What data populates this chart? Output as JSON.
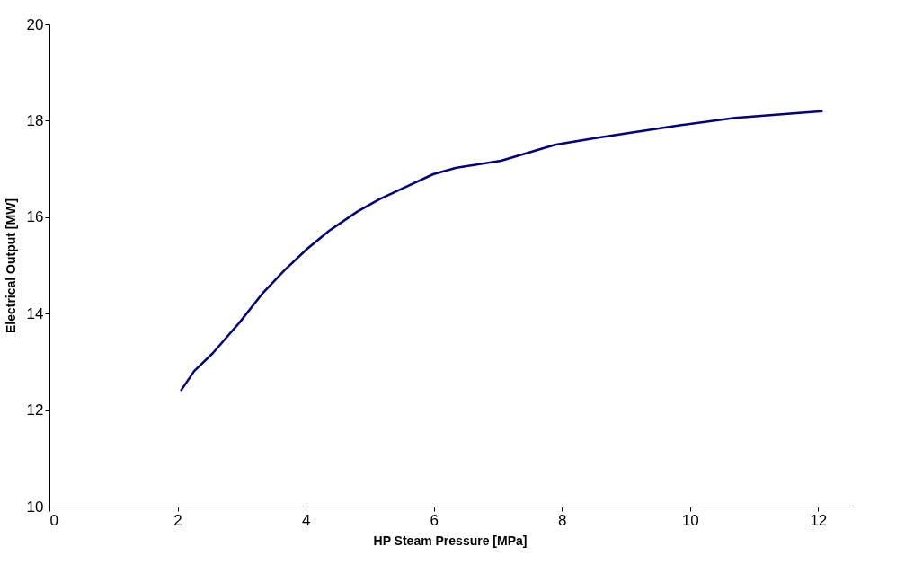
{
  "chart_data": {
    "type": "line",
    "xlabel": "HP Steam Pressure [MPa]",
    "ylabel": "Electrical Output [MW]",
    "x": [
      2.05,
      2.26,
      2.55,
      2.97,
      3.32,
      3.67,
      4.02,
      4.37,
      4.8,
      5.15,
      5.57,
      5.99,
      6.34,
      7.05,
      7.89,
      8.52,
      9.86,
      10.7,
      12.07
    ],
    "series": [
      {
        "color": "#000080",
        "values": [
          12.4,
          12.81,
          13.18,
          13.82,
          14.41,
          14.9,
          15.34,
          15.72,
          16.11,
          16.37,
          16.63,
          16.89,
          17.02,
          17.17,
          17.5,
          17.64,
          17.91,
          18.06,
          18.2
        ]
      }
    ],
    "xlim": [
      0,
      12.5
    ],
    "xticks": [
      0,
      2,
      4,
      6,
      8,
      10,
      12
    ],
    "ylim": [
      10,
      20
    ],
    "yticks": [
      10,
      12,
      14,
      16,
      18,
      20
    ],
    "grid": false,
    "legend": false,
    "marker": "none",
    "line_style": "solid"
  }
}
